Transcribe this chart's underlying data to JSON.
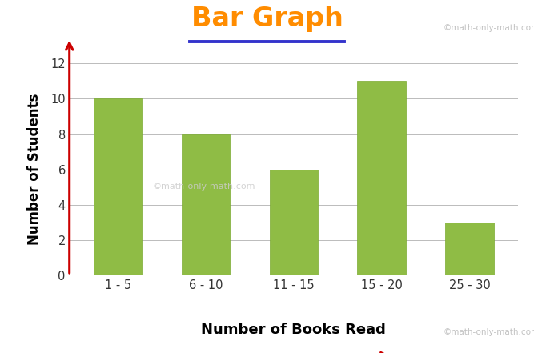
{
  "title": "Bar Graph",
  "title_color": "#FF8C00",
  "title_fontsize": 24,
  "title_fontweight": "bold",
  "underline_color": "#3333CC",
  "categories": [
    "1 - 5",
    "6 - 10",
    "11 - 15",
    "15 - 20",
    "25 - 30"
  ],
  "values": [
    10,
    8,
    6,
    11,
    3
  ],
  "bar_color": "#8FBC45",
  "bar_edgecolor": "#7aaa30",
  "bar_width": 0.55,
  "xlabel": "Number of Books Read",
  "ylabel": "Number of Students",
  "xlabel_fontsize": 13,
  "ylabel_fontsize": 12,
  "ylim": [
    0,
    12
  ],
  "yticks": [
    0,
    2,
    4,
    6,
    8,
    10,
    12
  ],
  "background_color": "#ffffff",
  "grid_color": "#bbbbbb",
  "watermark_top": "©math-only-math.com",
  "watermark_mid": "©math-only-math.com",
  "watermark_bot": "©math-only-math.com",
  "arrow_color": "#cc0000"
}
